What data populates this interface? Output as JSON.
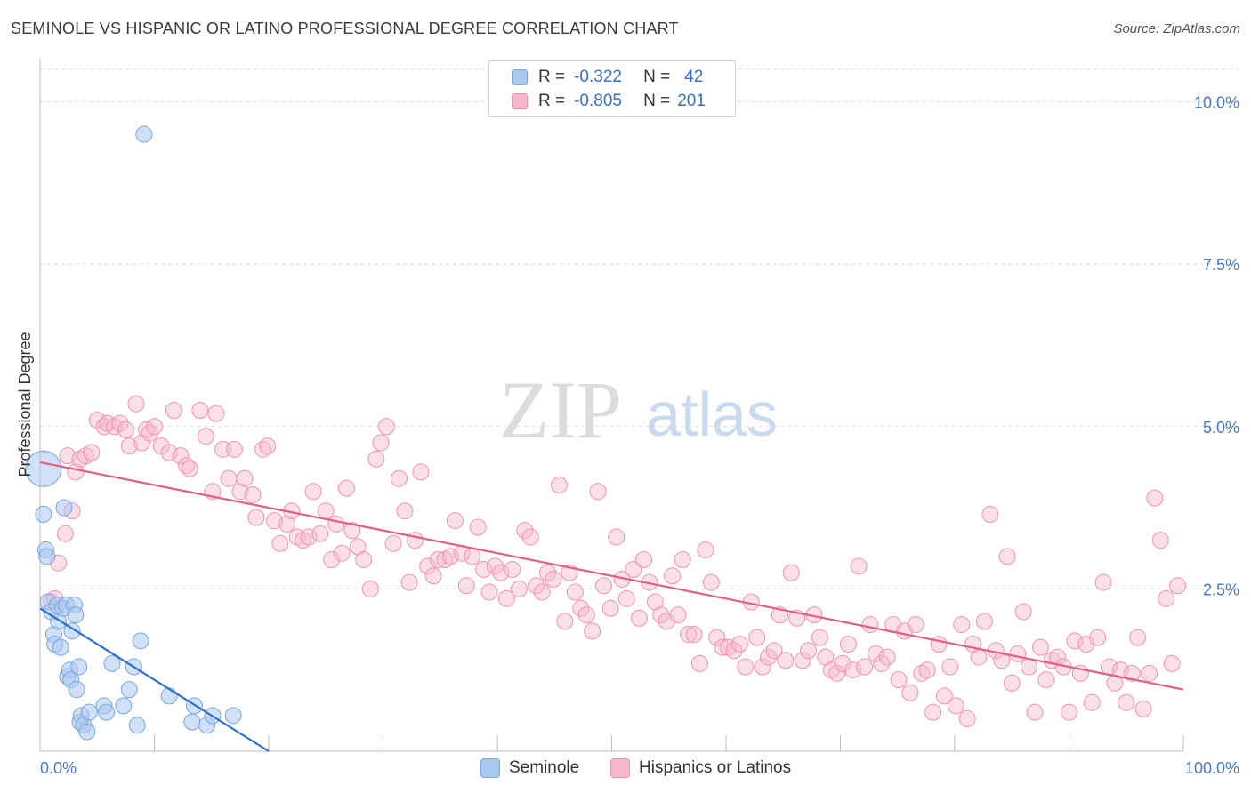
{
  "title": "SEMINOLE VS HISPANIC OR LATINO PROFESSIONAL DEGREE CORRELATION CHART",
  "source": "Source: ZipAtlas.com",
  "watermark": {
    "zip": "ZIP",
    "atlas": "atlas"
  },
  "legend": {
    "rows": [
      {
        "r_label": "R =",
        "r_value": "-0.322",
        "n_label": "N =",
        "n_value": "42"
      },
      {
        "r_label": "R =",
        "r_value": "-0.805",
        "n_label": "N =",
        "n_value": "201"
      }
    ]
  },
  "bottom_legend": {
    "seminole": "Seminole",
    "hispanic": "Hispanics or Latinos"
  },
  "colors": {
    "seminole_fill": "#a9c8f0",
    "seminole_stroke": "#7aa6dd",
    "seminole_line": "#2a6fd0",
    "hispanic_fill": "#f7b8cc",
    "hispanic_stroke": "#ef93b0",
    "hispanic_line": "#e0607f",
    "tick_text": "#4a78c4"
  },
  "chart_data": {
    "type": "scatter",
    "title": "SEMINOLE VS HISPANIC OR LATINO PROFESSIONAL DEGREE CORRELATION CHART",
    "xlabel": "",
    "ylabel": "Professional Degree",
    "xlim": [
      0,
      100
    ],
    "ylim": [
      0,
      10.5
    ],
    "x_tick_labels": [
      "0.0%",
      "100.0%"
    ],
    "y_ticks": [
      2.5,
      5.0,
      7.5,
      10.0
    ],
    "y_tick_labels": [
      "2.5%",
      "5.0%",
      "7.5%",
      "10.0%"
    ],
    "grid": true,
    "series": [
      {
        "name": "Seminole",
        "r": -0.322,
        "n": 42,
        "trend": {
          "x": [
            0,
            20
          ],
          "y": [
            2.2,
            0.0
          ]
        },
        "points": [
          [
            0.3,
            4.35
          ],
          [
            0.3,
            3.65
          ],
          [
            0.5,
            3.1
          ],
          [
            0.6,
            3.0
          ],
          [
            0.7,
            2.3
          ],
          [
            1.0,
            2.15
          ],
          [
            1.2,
            1.8
          ],
          [
            1.3,
            1.65
          ],
          [
            1.5,
            2.25
          ],
          [
            1.6,
            2.0
          ],
          [
            1.8,
            1.6
          ],
          [
            2.0,
            2.2
          ],
          [
            2.1,
            3.75
          ],
          [
            2.3,
            2.25
          ],
          [
            2.4,
            1.15
          ],
          [
            2.6,
            1.25
          ],
          [
            2.7,
            1.1
          ],
          [
            2.8,
            1.85
          ],
          [
            3.0,
            2.25
          ],
          [
            3.1,
            2.1
          ],
          [
            3.2,
            0.95
          ],
          [
            3.4,
            1.3
          ],
          [
            3.5,
            0.45
          ],
          [
            3.6,
            0.55
          ],
          [
            3.8,
            0.4
          ],
          [
            4.1,
            0.3
          ],
          [
            4.3,
            0.6
          ],
          [
            5.6,
            0.7
          ],
          [
            5.8,
            0.6
          ],
          [
            6.3,
            1.35
          ],
          [
            7.3,
            0.7
          ],
          [
            7.8,
            0.95
          ],
          [
            8.2,
            1.3
          ],
          [
            8.5,
            0.4
          ],
          [
            8.8,
            1.7
          ],
          [
            9.1,
            9.5
          ],
          [
            11.3,
            0.85
          ],
          [
            13.3,
            0.45
          ],
          [
            13.5,
            0.7
          ],
          [
            14.6,
            0.4
          ],
          [
            15.1,
            0.55
          ],
          [
            16.9,
            0.55
          ]
        ]
      },
      {
        "name": "Hispanics or Latinos",
        "r": -0.805,
        "n": 201,
        "trend": {
          "x": [
            0,
            100
          ],
          "y": [
            4.45,
            0.95
          ]
        },
        "points": [
          [
            1.0,
            2.3
          ],
          [
            1.3,
            2.35
          ],
          [
            1.6,
            2.9
          ],
          [
            2.2,
            3.35
          ],
          [
            2.4,
            4.55
          ],
          [
            2.8,
            3.7
          ],
          [
            3.1,
            4.3
          ],
          [
            3.5,
            4.5
          ],
          [
            4.0,
            4.55
          ],
          [
            4.5,
            4.6
          ],
          [
            5.0,
            5.1
          ],
          [
            5.6,
            5.0
          ],
          [
            5.9,
            5.05
          ],
          [
            6.5,
            5.0
          ],
          [
            7.0,
            5.05
          ],
          [
            7.5,
            4.95
          ],
          [
            7.8,
            4.7
          ],
          [
            8.4,
            5.35
          ],
          [
            8.9,
            4.75
          ],
          [
            9.3,
            4.95
          ],
          [
            9.6,
            4.9
          ],
          [
            10.0,
            5.0
          ],
          [
            10.6,
            4.7
          ],
          [
            11.3,
            4.6
          ],
          [
            11.7,
            5.25
          ],
          [
            12.3,
            4.55
          ],
          [
            12.8,
            4.4
          ],
          [
            13.1,
            4.35
          ],
          [
            14.0,
            5.25
          ],
          [
            14.5,
            4.85
          ],
          [
            15.1,
            4.0
          ],
          [
            15.4,
            5.2
          ],
          [
            16.0,
            4.65
          ],
          [
            16.5,
            4.2
          ],
          [
            17.0,
            4.65
          ],
          [
            17.5,
            4.0
          ],
          [
            17.9,
            4.2
          ],
          [
            18.6,
            3.95
          ],
          [
            18.9,
            3.6
          ],
          [
            19.5,
            4.65
          ],
          [
            19.9,
            4.7
          ],
          [
            20.5,
            3.55
          ],
          [
            21.0,
            3.2
          ],
          [
            21.6,
            3.5
          ],
          [
            22.0,
            3.7
          ],
          [
            22.5,
            3.3
          ],
          [
            23.0,
            3.25
          ],
          [
            23.5,
            3.3
          ],
          [
            23.9,
            4.0
          ],
          [
            24.5,
            3.35
          ],
          [
            25.0,
            3.7
          ],
          [
            25.5,
            2.95
          ],
          [
            25.9,
            3.5
          ],
          [
            26.4,
            3.05
          ],
          [
            26.8,
            4.05
          ],
          [
            27.3,
            3.4
          ],
          [
            27.8,
            3.15
          ],
          [
            28.3,
            2.95
          ],
          [
            28.9,
            2.5
          ],
          [
            29.4,
            4.5
          ],
          [
            29.8,
            4.75
          ],
          [
            30.3,
            5.0
          ],
          [
            30.9,
            3.2
          ],
          [
            31.4,
            4.2
          ],
          [
            31.9,
            3.7
          ],
          [
            32.3,
            2.6
          ],
          [
            32.8,
            3.25
          ],
          [
            33.3,
            4.3
          ],
          [
            33.9,
            2.85
          ],
          [
            34.4,
            2.7
          ],
          [
            34.8,
            2.95
          ],
          [
            35.4,
            2.95
          ],
          [
            35.9,
            3.0
          ],
          [
            36.3,
            3.55
          ],
          [
            36.9,
            3.05
          ],
          [
            37.3,
            2.55
          ],
          [
            37.8,
            3.0
          ],
          [
            38.3,
            3.45
          ],
          [
            38.8,
            2.8
          ],
          [
            39.3,
            2.45
          ],
          [
            39.8,
            2.85
          ],
          [
            40.3,
            2.75
          ],
          [
            40.8,
            2.35
          ],
          [
            41.3,
            2.8
          ],
          [
            41.9,
            2.5
          ],
          [
            42.4,
            3.4
          ],
          [
            42.9,
            3.3
          ],
          [
            43.4,
            2.55
          ],
          [
            43.9,
            2.45
          ],
          [
            44.4,
            2.75
          ],
          [
            44.9,
            2.65
          ],
          [
            45.4,
            4.1
          ],
          [
            45.9,
            2.0
          ],
          [
            46.3,
            2.75
          ],
          [
            46.8,
            2.45
          ],
          [
            47.3,
            2.2
          ],
          [
            47.8,
            2.1
          ],
          [
            48.3,
            1.85
          ],
          [
            48.8,
            4.0
          ],
          [
            49.3,
            2.55
          ],
          [
            49.9,
            2.2
          ],
          [
            50.4,
            3.3
          ],
          [
            50.9,
            2.65
          ],
          [
            51.3,
            2.35
          ],
          [
            51.9,
            2.8
          ],
          [
            52.4,
            2.05
          ],
          [
            52.8,
            2.95
          ],
          [
            53.3,
            2.6
          ],
          [
            53.8,
            2.3
          ],
          [
            54.3,
            2.1
          ],
          [
            54.8,
            2.0
          ],
          [
            55.3,
            2.7
          ],
          [
            55.8,
            2.1
          ],
          [
            56.2,
            2.95
          ],
          [
            56.7,
            1.8
          ],
          [
            57.2,
            1.8
          ],
          [
            57.7,
            1.35
          ],
          [
            58.2,
            3.1
          ],
          [
            58.7,
            2.6
          ],
          [
            59.2,
            1.75
          ],
          [
            59.7,
            1.6
          ],
          [
            60.2,
            1.6
          ],
          [
            60.7,
            1.55
          ],
          [
            61.2,
            1.65
          ],
          [
            61.7,
            1.3
          ],
          [
            62.2,
            2.3
          ],
          [
            62.7,
            1.75
          ],
          [
            63.2,
            1.3
          ],
          [
            63.7,
            1.45
          ],
          [
            64.2,
            1.55
          ],
          [
            64.7,
            2.1
          ],
          [
            65.2,
            1.4
          ],
          [
            65.7,
            2.75
          ],
          [
            66.2,
            2.05
          ],
          [
            66.7,
            1.4
          ],
          [
            67.2,
            1.55
          ],
          [
            67.7,
            2.1
          ],
          [
            68.2,
            1.75
          ],
          [
            68.7,
            1.45
          ],
          [
            69.2,
            1.25
          ],
          [
            69.7,
            1.2
          ],
          [
            70.2,
            1.35
          ],
          [
            70.7,
            1.65
          ],
          [
            71.1,
            1.25
          ],
          [
            71.6,
            2.85
          ],
          [
            72.1,
            1.3
          ],
          [
            72.6,
            1.95
          ],
          [
            73.1,
            1.5
          ],
          [
            73.6,
            1.35
          ],
          [
            74.1,
            1.45
          ],
          [
            74.6,
            1.95
          ],
          [
            75.1,
            1.1
          ],
          [
            75.6,
            1.85
          ],
          [
            76.1,
            0.9
          ],
          [
            76.6,
            1.95
          ],
          [
            77.1,
            1.2
          ],
          [
            77.6,
            1.25
          ],
          [
            78.1,
            0.6
          ],
          [
            78.6,
            1.65
          ],
          [
            79.1,
            0.85
          ],
          [
            79.6,
            1.3
          ],
          [
            80.1,
            0.7
          ],
          [
            80.6,
            1.95
          ],
          [
            81.1,
            0.5
          ],
          [
            81.6,
            1.65
          ],
          [
            82.1,
            1.45
          ],
          [
            82.6,
            2.0
          ],
          [
            83.1,
            3.65
          ],
          [
            83.6,
            1.55
          ],
          [
            84.1,
            1.4
          ],
          [
            84.6,
            3.0
          ],
          [
            85.0,
            1.05
          ],
          [
            85.5,
            1.5
          ],
          [
            86.0,
            2.15
          ],
          [
            86.5,
            1.3
          ],
          [
            87.0,
            0.6
          ],
          [
            87.5,
            1.6
          ],
          [
            88.0,
            1.1
          ],
          [
            88.5,
            1.4
          ],
          [
            89.0,
            1.45
          ],
          [
            89.5,
            1.3
          ],
          [
            90.0,
            0.6
          ],
          [
            90.5,
            1.7
          ],
          [
            91.0,
            1.2
          ],
          [
            91.5,
            1.65
          ],
          [
            92.0,
            0.75
          ],
          [
            92.5,
            1.75
          ],
          [
            93.0,
            2.6
          ],
          [
            93.5,
            1.3
          ],
          [
            94.0,
            1.05
          ],
          [
            94.5,
            1.25
          ],
          [
            95.0,
            0.75
          ],
          [
            95.5,
            1.2
          ],
          [
            96.0,
            1.75
          ],
          [
            96.5,
            0.65
          ],
          [
            97.0,
            1.2
          ],
          [
            97.5,
            3.9
          ],
          [
            98.0,
            3.25
          ],
          [
            98.5,
            2.35
          ],
          [
            99.0,
            1.35
          ],
          [
            99.5,
            2.55
          ]
        ]
      }
    ]
  }
}
